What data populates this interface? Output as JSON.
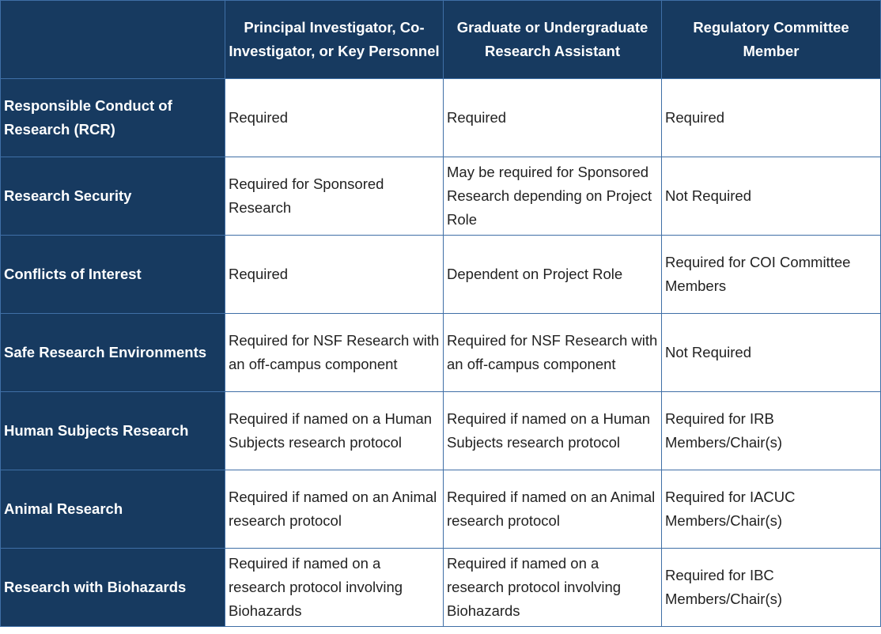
{
  "table": {
    "header": [
      "Principal Investigator, Co-Investigator, or Key Personnel",
      "Graduate or Undergraduate Research Assistant",
      "Regulatory Committee Member"
    ],
    "rows": [
      [
        "Responsible Conduct of Research (RCR)",
        "Required",
        "Required",
        "Required"
      ],
      [
        "Research Security",
        "Required for Sponsored Research",
        "May be required for Sponsored Research depending on Project Role",
        "Not Required"
      ],
      [
        "Conflicts of Interest",
        "Required",
        "Dependent on Project Role",
        "Required for COI Committee Members"
      ],
      [
        "Safe Research Environments",
        "Required for NSF Research with an off-campus component",
        "Required for NSF Research with an off-campus component",
        "Not Required"
      ],
      [
        "Human Subjects Research",
        "Required if named on a Human Subjects research protocol",
        "Required if named on a Human Subjects research protocol",
        "Required for IRB Members/Chair(s)"
      ],
      [
        "Animal Research",
        "Required if named on an Animal research protocol",
        "Required if named on an Animal research protocol",
        "Required for IACUC Members/Chair(s)"
      ],
      [
        "Research with Biohazards",
        "Required if named on a research protocol involving Biohazards",
        "Required if named on a research protocol involving Biohazards",
        "Required for IBC Members/Chair(s)"
      ]
    ]
  }
}
